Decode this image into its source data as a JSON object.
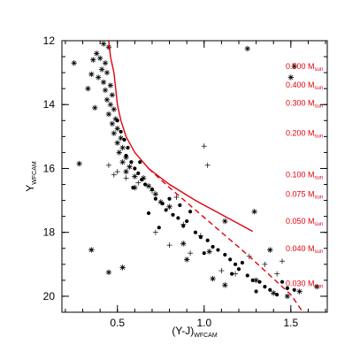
{
  "chart_data": {
    "type": "scatter",
    "xlabel": "(Y-J)",
    "xlabel_sub": "WFCAM",
    "ylabel": "Y",
    "ylabel_sub": "WFCAM",
    "xlim": [
      0.18,
      1.71
    ],
    "ylim": [
      20.5,
      12.0
    ],
    "y_inverted": true,
    "x_ticks": [
      0.5,
      1.0,
      1.5
    ],
    "x_tick_labels": [
      "0.5",
      "1.0",
      "1.5"
    ],
    "y_ticks": [
      12,
      14,
      16,
      18,
      20
    ],
    "y_tick_labels": [
      "12",
      "14",
      "16",
      "18",
      "20"
    ],
    "x_minor_step": 0.1,
    "y_minor_step": 0.5,
    "colors": {
      "model": "#e0000c",
      "points": "#000000",
      "axes": "#000000"
    },
    "mass_labels": [
      {
        "y": 12.8,
        "value": "0.500 M",
        "sub": "sun"
      },
      {
        "y": 13.38,
        "value": "0.400 M",
        "sub": "sun"
      },
      {
        "y": 13.95,
        "value": "0.300 M",
        "sub": "sun"
      },
      {
        "y": 14.9,
        "value": "0.200 M",
        "sub": "sun"
      },
      {
        "y": 16.2,
        "value": "0.100 M",
        "sub": "sun"
      },
      {
        "y": 16.8,
        "value": "0.075 M",
        "sub": "sun"
      },
      {
        "y": 17.65,
        "value": "0.050 M",
        "sub": "sun"
      },
      {
        "y": 18.5,
        "value": "0.040 M",
        "sub": "sun"
      },
      {
        "y": 19.6,
        "value": "0.030 M",
        "sub": "sun"
      }
    ],
    "series": [
      {
        "name": "",
        "marker": "asterisk",
        "points": [
          [
            0.42,
            12.1
          ],
          [
            0.45,
            12.2
          ],
          [
            0.38,
            12.4
          ],
          [
            0.4,
            12.55
          ],
          [
            0.43,
            12.7
          ],
          [
            0.36,
            12.6
          ],
          [
            0.41,
            12.9
          ],
          [
            0.44,
            13.0
          ],
          [
            0.39,
            13.15
          ],
          [
            0.42,
            13.3
          ],
          [
            0.46,
            13.4
          ],
          [
            0.43,
            13.55
          ],
          [
            0.47,
            13.7
          ],
          [
            0.44,
            13.85
          ],
          [
            0.46,
            14.0
          ],
          [
            0.48,
            14.15
          ],
          [
            0.45,
            14.3
          ],
          [
            0.49,
            14.45
          ],
          [
            0.47,
            14.6
          ],
          [
            0.5,
            14.75
          ],
          [
            0.48,
            14.9
          ],
          [
            0.52,
            15.05
          ],
          [
            0.5,
            15.2
          ],
          [
            0.53,
            15.35
          ],
          [
            0.51,
            15.5
          ],
          [
            0.55,
            15.65
          ],
          [
            0.53,
            15.8
          ],
          [
            0.57,
            15.95
          ],
          [
            0.55,
            16.1
          ],
          [
            0.6,
            16.25
          ],
          [
            0.35,
            13.05
          ],
          [
            0.33,
            13.5
          ],
          [
            0.37,
            14.1
          ],
          [
            0.25,
            12.7
          ],
          [
            0.28,
            15.85
          ],
          [
            0.65,
            16.3
          ],
          [
            0.68,
            16.55
          ],
          [
            0.72,
            16.8
          ],
          [
            0.75,
            17.05
          ],
          [
            0.6,
            16.6
          ],
          [
            0.8,
            17.2
          ],
          [
            1.29,
            17.35
          ],
          [
            1.12,
            17.65
          ],
          [
            1.38,
            18.55
          ],
          [
            0.88,
            18.35
          ],
          [
            1.03,
            18.6
          ],
          [
            0.35,
            18.55
          ],
          [
            0.53,
            19.1
          ],
          [
            0.45,
            19.25
          ],
          [
            1.05,
            19.45
          ],
          [
            1.12,
            19.65
          ],
          [
            1.52,
            12.8
          ],
          [
            1.5,
            13.15
          ],
          [
            1.25,
            12.25
          ],
          [
            1.4,
            19.9
          ],
          [
            1.55,
            19.85
          ],
          [
            1.65,
            19.7
          ],
          [
            1.48,
            20.0
          ],
          [
            0.9,
            18.85
          ],
          [
            1.3,
            19.5
          ]
        ]
      },
      {
        "name": "",
        "marker": "dot",
        "points": [
          [
            0.5,
            14.5
          ],
          [
            0.52,
            14.85
          ],
          [
            0.54,
            15.1
          ],
          [
            0.56,
            15.35
          ],
          [
            0.55,
            15.6
          ],
          [
            0.58,
            15.8
          ],
          [
            0.6,
            16.0
          ],
          [
            0.62,
            16.15
          ],
          [
            0.64,
            16.35
          ],
          [
            0.66,
            16.5
          ],
          [
            0.7,
            16.65
          ],
          [
            0.72,
            16.95
          ],
          [
            0.76,
            17.1
          ],
          [
            0.78,
            17.3
          ],
          [
            0.82,
            17.45
          ],
          [
            0.85,
            17.55
          ],
          [
            0.88,
            17.8
          ],
          [
            0.9,
            17.65
          ],
          [
            0.95,
            18.0
          ],
          [
            0.98,
            18.15
          ],
          [
            1.02,
            18.25
          ],
          [
            1.05,
            18.45
          ],
          [
            1.08,
            18.55
          ],
          [
            1.12,
            18.7
          ],
          [
            1.15,
            18.85
          ],
          [
            1.18,
            19.0
          ],
          [
            1.2,
            19.15
          ],
          [
            1.22,
            18.95
          ],
          [
            1.25,
            19.35
          ],
          [
            1.28,
            19.5
          ],
          [
            1.32,
            19.55
          ],
          [
            1.35,
            19.7
          ],
          [
            1.38,
            19.8
          ],
          [
            1.42,
            19.95
          ],
          [
            1.45,
            19.55
          ],
          [
            1.48,
            19.75
          ],
          [
            1.52,
            19.8
          ],
          [
            1.3,
            19.85
          ],
          [
            1.16,
            19.3
          ],
          [
            1.0,
            18.65
          ],
          [
            0.74,
            17.85
          ],
          [
            0.8,
            16.95
          ],
          [
            0.86,
            17.15
          ],
          [
            0.68,
            17.4
          ],
          [
            0.92,
            17.35
          ],
          [
            0.63,
            15.8
          ],
          [
            0.59,
            16.6
          ]
        ]
      },
      {
        "name": "",
        "marker": "plus",
        "points": [
          [
            0.45,
            15.9
          ],
          [
            0.5,
            16.1
          ],
          [
            0.48,
            16.2
          ],
          [
            0.55,
            16.3
          ],
          [
            0.62,
            16.45
          ],
          [
            0.7,
            16.7
          ],
          [
            1.0,
            15.3
          ],
          [
            1.02,
            15.9
          ],
          [
            0.92,
            18.65
          ],
          [
            0.98,
            18.1
          ],
          [
            1.1,
            19.2
          ],
          [
            1.26,
            18.75
          ],
          [
            1.18,
            19.3
          ],
          [
            0.8,
            18.4
          ],
          [
            0.72,
            18.0
          ],
          [
            0.88,
            17.75
          ],
          [
            1.35,
            19.0
          ],
          [
            1.42,
            19.3
          ],
          [
            1.45,
            18.9
          ],
          [
            0.84,
            16.9
          ]
        ]
      },
      {
        "name": "",
        "marker": "line",
        "points": [
          [
            0.45,
            12.0
          ],
          [
            0.46,
            12.5
          ],
          [
            0.48,
            13.0
          ],
          [
            0.49,
            13.5
          ],
          [
            0.5,
            14.0
          ],
          [
            0.52,
            14.5
          ],
          [
            0.55,
            15.0
          ],
          [
            0.6,
            15.5
          ],
          [
            0.68,
            16.0
          ],
          [
            0.8,
            16.5
          ],
          [
            0.95,
            17.0
          ],
          [
            1.12,
            17.5
          ],
          [
            1.28,
            17.97
          ]
        ]
      },
      {
        "name": "",
        "marker": "dashed-line",
        "points": [
          [
            0.68,
            16.0
          ],
          [
            0.8,
            16.6
          ],
          [
            0.95,
            17.3
          ],
          [
            1.1,
            18.0
          ],
          [
            1.25,
            18.7
          ],
          [
            1.38,
            19.35
          ],
          [
            1.5,
            19.95
          ],
          [
            1.57,
            20.5
          ]
        ]
      }
    ]
  }
}
